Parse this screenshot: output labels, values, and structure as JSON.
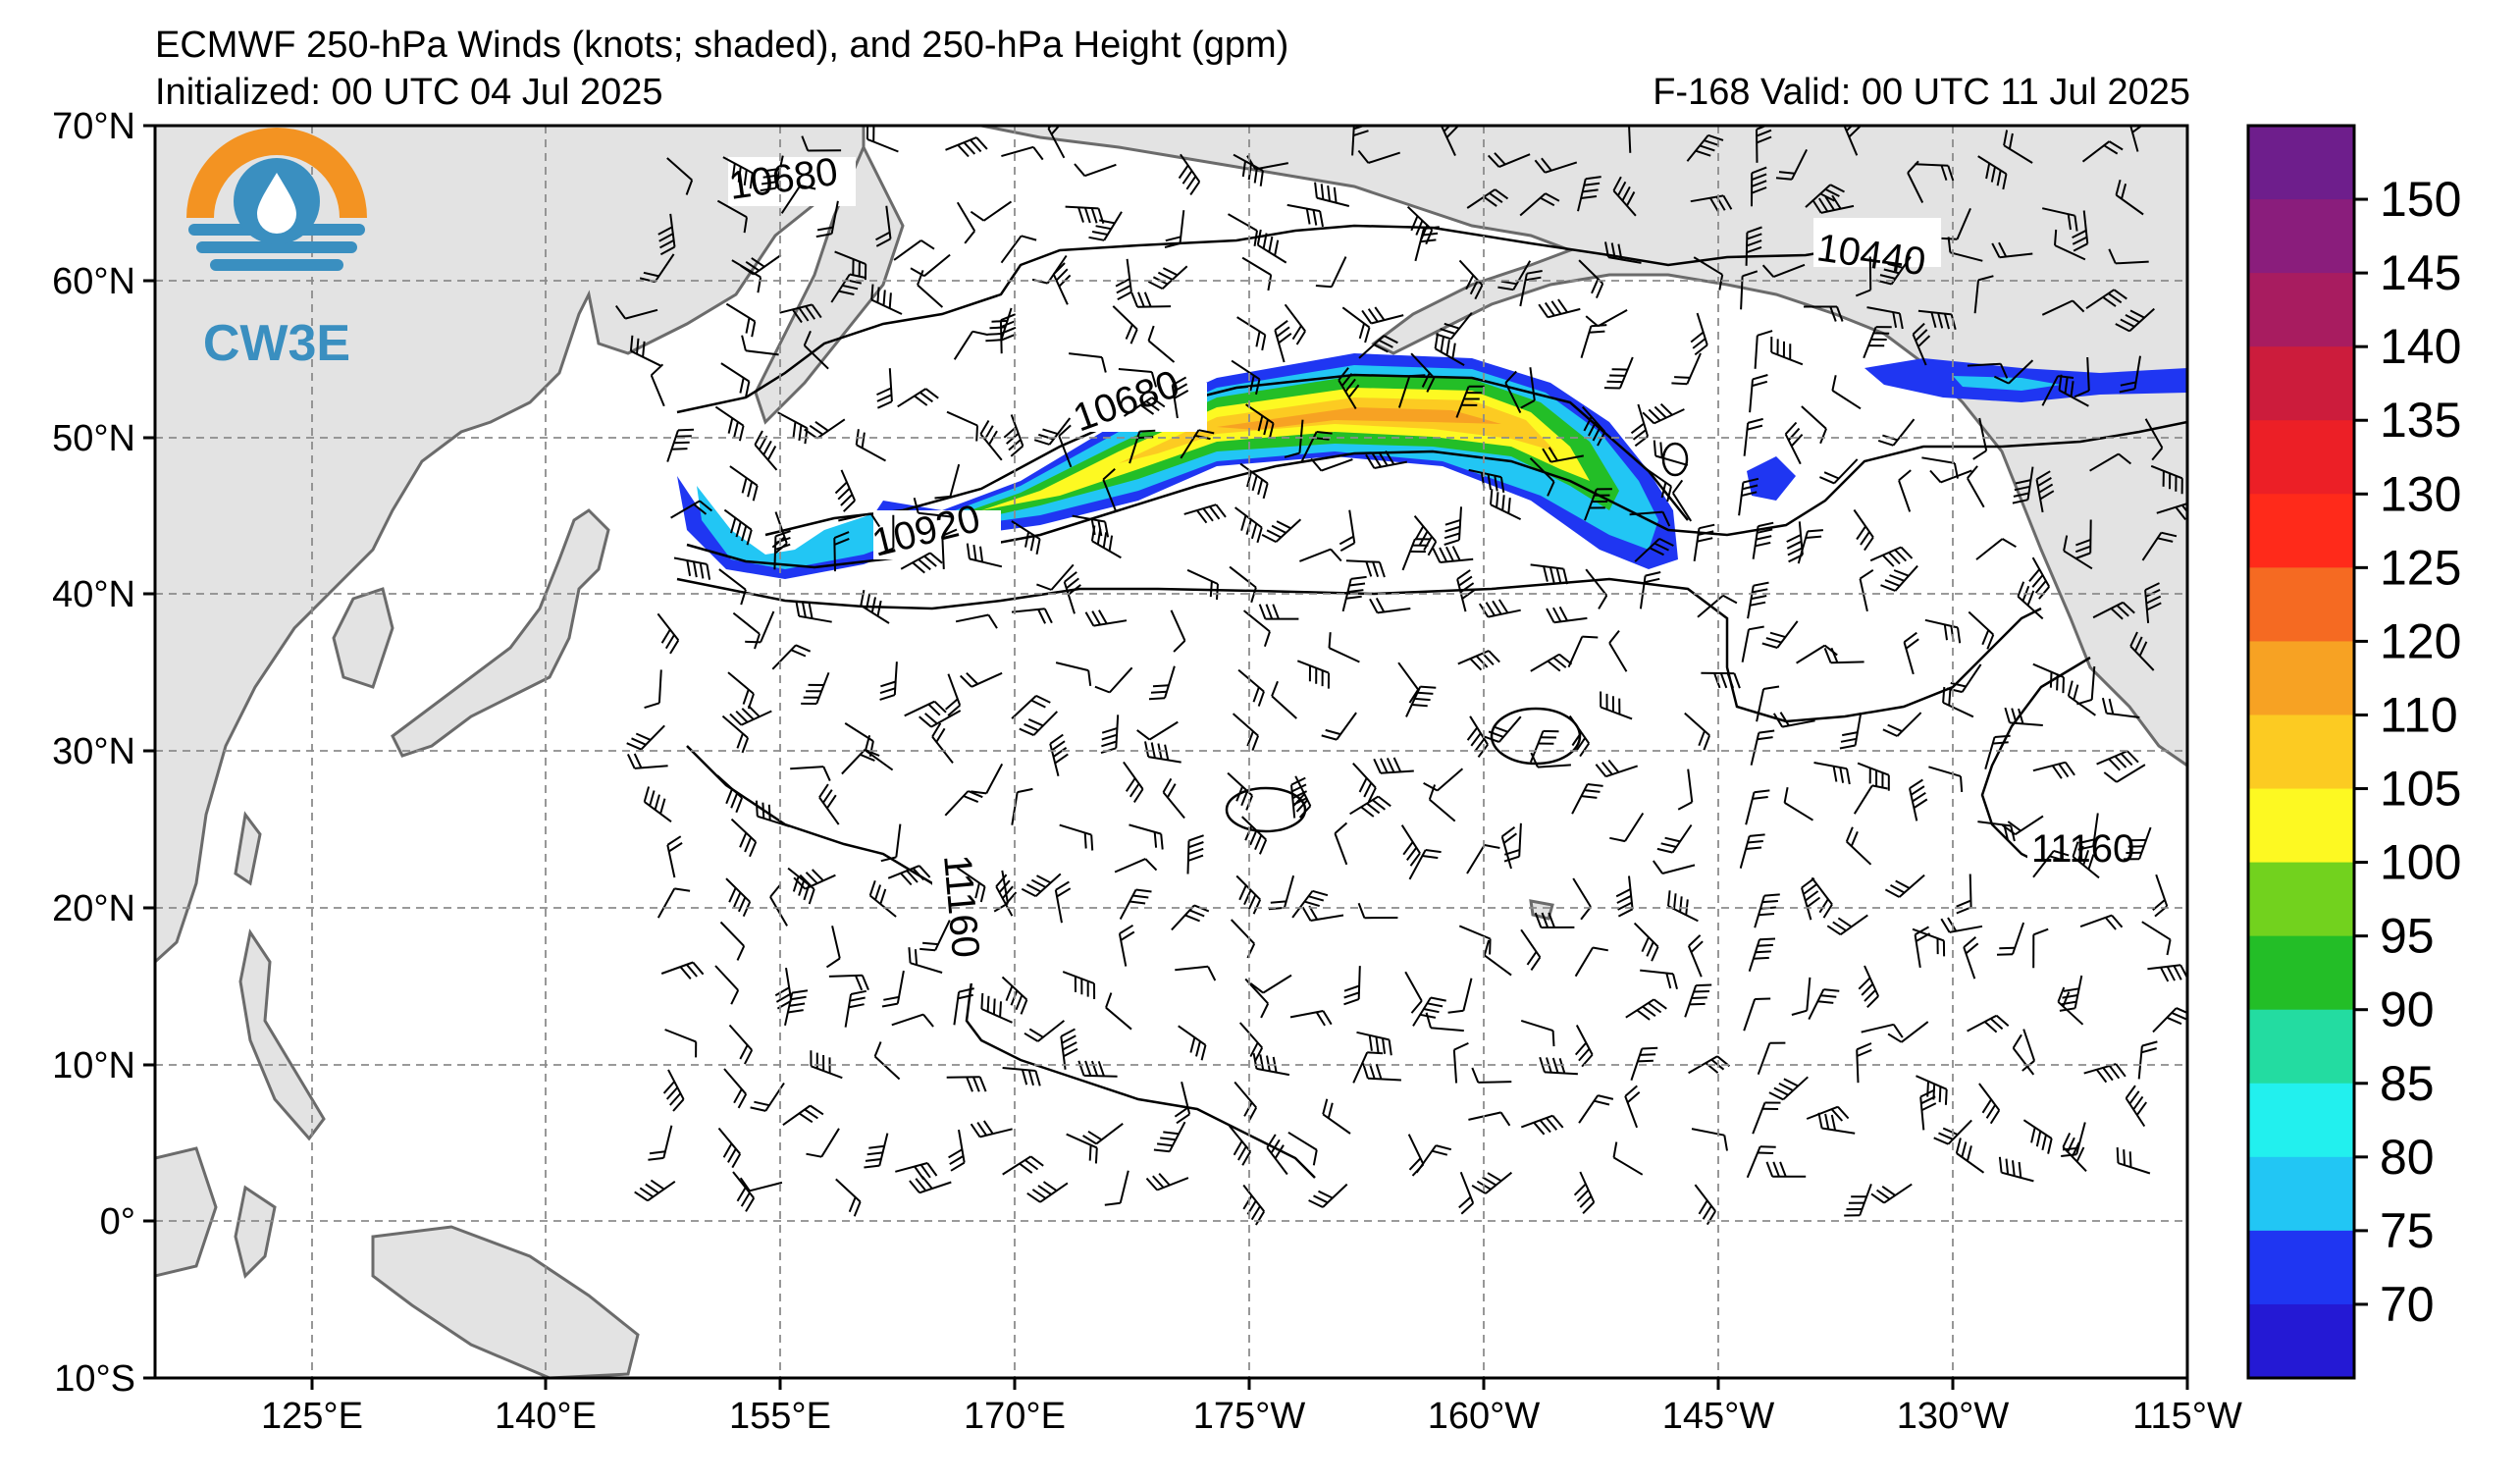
{
  "header": {
    "title": "ECMWF 250-hPa Winds (knots; shaded), and 250-hPa Height (gpm)",
    "initialized": "Initialized: 00 UTC 04 Jul 2025",
    "valid": "F-168  Valid: 00 UTC 11 Jul 2025"
  },
  "logo": {
    "text": "CW3E",
    "icon": "droplet-icon",
    "colors": {
      "orange": "#f39322",
      "blue": "#3a8fc0"
    }
  },
  "map": {
    "lat_labels": [
      "70°N",
      "60°N",
      "50°N",
      "40°N",
      "30°N",
      "20°N",
      "10°N",
      "0°",
      "10°S"
    ],
    "lon_labels": [
      "125°E",
      "140°E",
      "155°E",
      "170°E",
      "175°W",
      "160°W",
      "145°W",
      "130°W",
      "115°W"
    ],
    "land_color": "#e3e3e3",
    "coast_color": "#6b6b6b",
    "contour_labels": [
      "10680",
      "10440",
      "10680",
      "10920",
      "11160",
      "11160"
    ]
  },
  "colorbar": {
    "labels": [
      "150",
      "145",
      "140",
      "135",
      "130",
      "125",
      "120",
      "110",
      "105",
      "100",
      "95",
      "90",
      "85",
      "80",
      "75",
      "70"
    ],
    "colors": [
      "#6e1e8c",
      "#8a1d7c",
      "#a81c60",
      "#cc1c3c",
      "#ec1f26",
      "#ff2a1a",
      "#f56a22",
      "#f7a223",
      "#fccb22",
      "#fdf922",
      "#72d21e",
      "#23be27",
      "#23dca1",
      "#22f0ee",
      "#22c6f4",
      "#1f36f2",
      "#2419d4"
    ]
  }
}
